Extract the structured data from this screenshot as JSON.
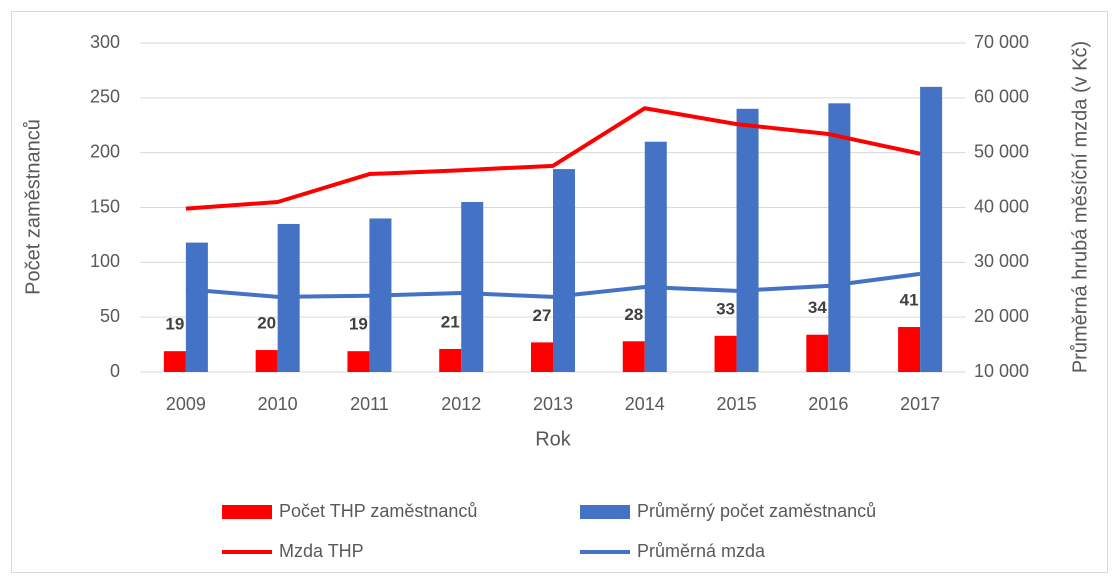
{
  "chart_data": {
    "type": "bar",
    "x_label": "Rok",
    "y_label": "Počet zaměstnanců",
    "y2_label": "Průměrná hrubá měsíční mzda (v Kč)",
    "categories": [
      "2009",
      "2010",
      "2011",
      "2012",
      "2013",
      "2014",
      "2015",
      "2016",
      "2017"
    ],
    "series": [
      {
        "name": "Počet THP zaměstnanců",
        "type": "bar",
        "color": "#ff0000",
        "values": [
          19,
          20,
          19,
          21,
          27,
          28,
          33,
          34,
          41
        ],
        "data_labels": true
      },
      {
        "name": "Průměrný počet zaměstnanců",
        "type": "bar",
        "color": "#4472c4",
        "values": [
          118,
          135,
          140,
          155,
          185,
          210,
          240,
          245,
          260
        ]
      },
      {
        "name": "Mzda THP",
        "type": "line",
        "axis": "y2",
        "color": "#ff0000",
        "values": [
          39800,
          41000,
          46100,
          46800,
          47600,
          58100,
          55200,
          53400,
          49800
        ]
      },
      {
        "name": "Průměrná mzda",
        "type": "line",
        "axis": "y2",
        "color": "#4472c4",
        "values": [
          25100,
          23700,
          23900,
          24400,
          23700,
          25500,
          24800,
          25700,
          27900
        ]
      }
    ],
    "ylim": [
      0,
      300
    ],
    "yticks": [
      0,
      50,
      100,
      150,
      200,
      250,
      300
    ],
    "y2lim": [
      10000,
      70000
    ],
    "y2ticks": [
      {
        "value": 10000,
        "label": "10 000"
      },
      {
        "value": 20000,
        "label": "20 000"
      },
      {
        "value": 30000,
        "label": "30 000"
      },
      {
        "value": 40000,
        "label": "40 000"
      },
      {
        "value": 50000,
        "label": "50 000"
      },
      {
        "value": 60000,
        "label": "60 000"
      },
      {
        "value": 70000,
        "label": "70 000"
      }
    ],
    "grid": true,
    "legend": "bottom"
  }
}
